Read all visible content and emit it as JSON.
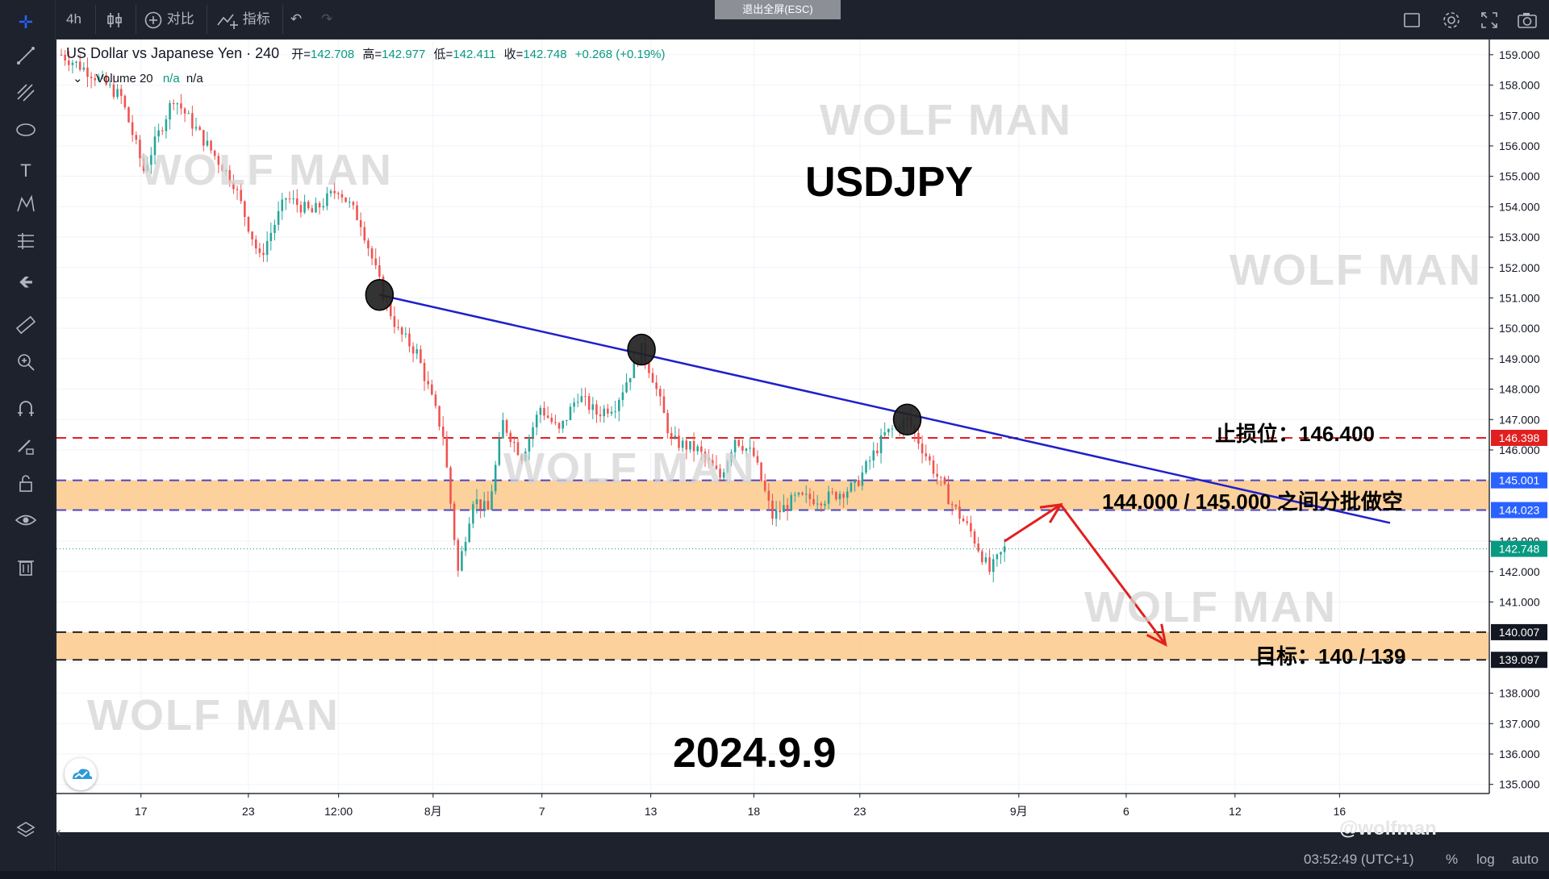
{
  "toolbar": {
    "interval": "4h",
    "compare_label": "对比",
    "indicators_label": "指标",
    "exit_fullscreen": "退出全屏(ESC)"
  },
  "legend": {
    "symbol": "US Dollar vs Japanese Yen · 240",
    "open_label": "开=",
    "open": "142.708",
    "high_label": "高=",
    "high": "142.977",
    "low_label": "低=",
    "low": "142.411",
    "close_label": "收=",
    "close": "142.748",
    "change": "+0.268 (+0.19%)",
    "volume_label": "Volume 20",
    "volume_val1": "n/a",
    "volume_val2": "n/a"
  },
  "watermark": "WOLF MAN",
  "annotations": {
    "title": "USDJPY",
    "date": "2024.9.9",
    "stop_loss": "止损位：146.400",
    "short_zone": "144.000 / 145.000 之间分批做空",
    "target": "目标：140 / 139"
  },
  "status": {
    "clock": "03:52:49 (UTC+1)",
    "percent": "%",
    "log": "log",
    "auto": "auto",
    "credit": "@wolfman"
  },
  "chart_data": {
    "type": "candlestick",
    "title": "USDJPY",
    "symbol": "US Dollar vs Japanese Yen",
    "timeframe": "240",
    "ylim": [
      134.7,
      159.5
    ],
    "y_ticks": [
      135,
      136,
      137,
      138,
      139,
      140,
      141,
      142,
      143,
      144,
      145,
      146,
      147,
      148,
      149,
      150,
      151,
      152,
      153,
      154,
      155,
      156,
      157,
      158,
      159
    ],
    "y_tick_labels": [
      "135.000",
      "136.000",
      "137.000",
      "138.000",
      "",
      "",
      "141.000",
      "142.000",
      "143.000",
      "",
      "",
      "146.000",
      "147.000",
      "148.000",
      "149.000",
      "150.000",
      "151.000",
      "152.000",
      "153.000",
      "154.000",
      "155.000",
      "156.000",
      "157.000",
      "158.000",
      "159.000"
    ],
    "x_tick_labels": [
      "17",
      "23",
      "12:00",
      "8月",
      "7",
      "13",
      "18",
      "23",
      "9月",
      "6",
      "12",
      "16"
    ],
    "price_path": [
      [
        0,
        159.0
      ],
      [
        8,
        158.4
      ],
      [
        16,
        157.6
      ],
      [
        22,
        155.2
      ],
      [
        30,
        157.6
      ],
      [
        38,
        156.2
      ],
      [
        46,
        154.8
      ],
      [
        53,
        152.3
      ],
      [
        60,
        154.3
      ],
      [
        67,
        153.8
      ],
      [
        74,
        154.6
      ],
      [
        80,
        153.5
      ],
      [
        86,
        151.1
      ],
      [
        90,
        149.9
      ],
      [
        95,
        149.2
      ],
      [
        102,
        146.5
      ],
      [
        106,
        142.0
      ],
      [
        110,
        144.4
      ],
      [
        114,
        144.0
      ],
      [
        118,
        146.9
      ],
      [
        123,
        145.8
      ],
      [
        128,
        147.4
      ],
      [
        133,
        146.6
      ],
      [
        138,
        147.8
      ],
      [
        143,
        147.2
      ],
      [
        148,
        147.5
      ],
      [
        155,
        149.3
      ],
      [
        158,
        148.4
      ],
      [
        163,
        146.3
      ],
      [
        170,
        146.0
      ],
      [
        176,
        145.1
      ],
      [
        180,
        146.4
      ],
      [
        185,
        145.8
      ],
      [
        190,
        143.8
      ],
      [
        196,
        144.4
      ],
      [
        204,
        144.4
      ],
      [
        212,
        144.8
      ],
      [
        220,
        146.5
      ],
      [
        226,
        147.0
      ],
      [
        232,
        145.6
      ],
      [
        238,
        144.2
      ],
      [
        243,
        143.3
      ],
      [
        248,
        142.0
      ],
      [
        252,
        142.75
      ]
    ],
    "candle_count": 253,
    "current_price": 142.748,
    "lines": [
      {
        "name": "trendline",
        "color": "#1f1fcc",
        "from": [
          85,
          151.1
        ],
        "to": [
          355,
          143.6
        ]
      },
      {
        "name": "stop-loss",
        "price": 146.398,
        "color": "#e21f1f",
        "style": "dashed"
      },
      {
        "name": "zone-top",
        "price": 145.001,
        "color": "#4b45c8",
        "style": "dashed"
      },
      {
        "name": "zone-bottom",
        "price": 144.023,
        "color": "#4b45c8",
        "style": "dashed"
      },
      {
        "name": "target-top",
        "price": 140.007,
        "color": "#222222",
        "style": "dashed"
      },
      {
        "name": "target-bottom",
        "price": 139.097,
        "color": "#222222",
        "style": "dashed"
      }
    ],
    "zones": [
      {
        "name": "short-zone",
        "from": 144.023,
        "to": 145.001,
        "color": "#fbc98b"
      },
      {
        "name": "target-zone",
        "from": 139.097,
        "to": 140.007,
        "color": "#fbc98b"
      }
    ],
    "touch_points": [
      [
        85,
        151.1
      ],
      [
        155,
        149.3
      ],
      [
        226,
        147.0
      ]
    ],
    "projection": [
      [
        252,
        143.0
      ],
      [
        267,
        144.2
      ],
      [
        295,
        139.6
      ]
    ],
    "price_labels": [
      {
        "text": "146.398",
        "price": 146.398,
        "color": "#e21f1f"
      },
      {
        "text": "145.001",
        "price": 145.001,
        "color": "#2962ff"
      },
      {
        "text": "144.023",
        "price": 144.023,
        "color": "#2962ff"
      },
      {
        "text": "142.748",
        "price": 142.748,
        "color": "#089981"
      },
      {
        "text": "140.007",
        "price": 140.007,
        "color": "#131722"
      },
      {
        "text": "139.097",
        "price": 139.097,
        "color": "#131722"
      }
    ],
    "colors": {
      "up": "#26a69a",
      "down": "#ef5350"
    },
    "grid": true
  }
}
